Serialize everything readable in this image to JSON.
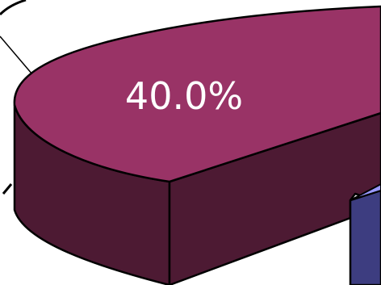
{
  "chart_data": {
    "type": "pie",
    "slices": [
      {
        "label": "40.0%",
        "value": 40.0,
        "color": "#993366",
        "side_color": "#4d1a33"
      },
      {
        "label": "",
        "value": null,
        "color": "#9999ff",
        "side_color": "#3d3d80"
      }
    ]
  }
}
